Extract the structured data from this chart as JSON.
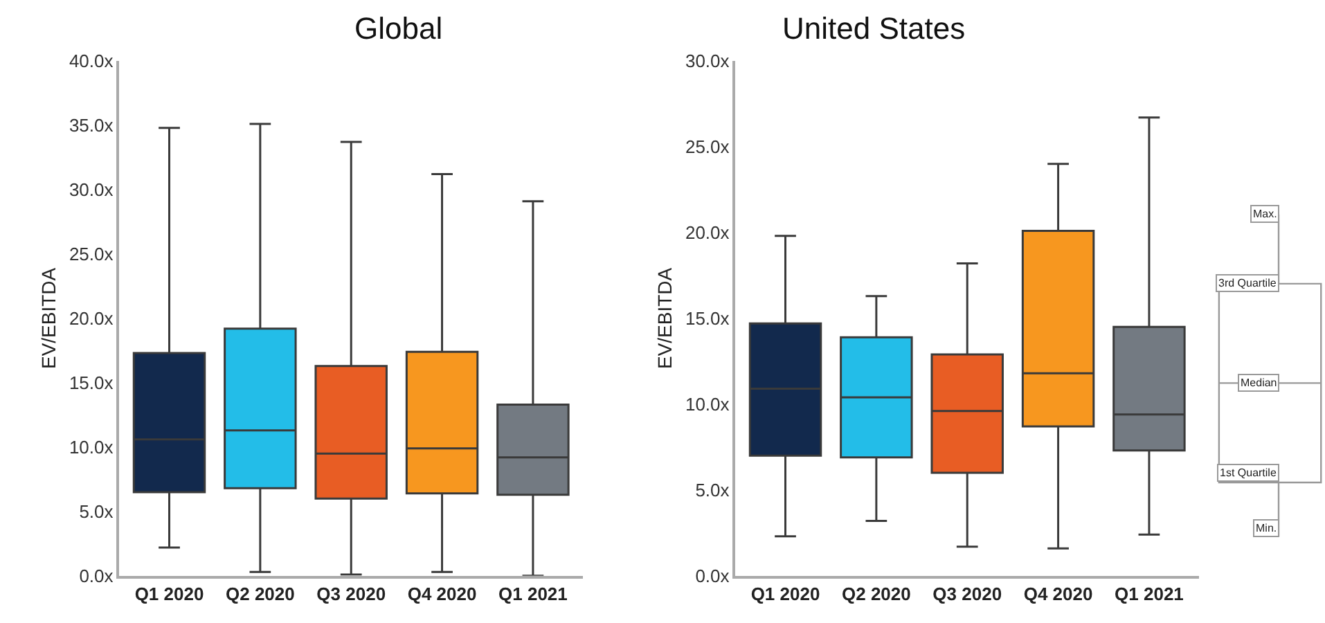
{
  "chart_data": [
    {
      "type": "box",
      "title": "Global",
      "ylabel": "EV/EBITDA",
      "categories": [
        "Q1 2020",
        "Q2 2020",
        "Q3 2020",
        "Q4 2020",
        "Q1 2021"
      ],
      "colors": [
        "#12294d",
        "#23bde8",
        "#e85d24",
        "#f7971f",
        "#737a82"
      ],
      "boxes": [
        {
          "low": 2.2,
          "q1": 6.5,
          "median": 10.6,
          "q3": 17.3,
          "high": 34.8
        },
        {
          "low": 0.3,
          "q1": 6.8,
          "median": 11.3,
          "q3": 19.2,
          "high": 35.1
        },
        {
          "low": 0.1,
          "q1": 6.0,
          "median": 9.5,
          "q3": 16.3,
          "high": 33.7
        },
        {
          "low": 0.3,
          "q1": 6.4,
          "median": 9.9,
          "q3": 17.4,
          "high": 31.2
        },
        {
          "low": 0,
          "q1": 6.3,
          "median": 9.2,
          "q3": 13.3,
          "high": 29.1
        }
      ],
      "ylim": [
        0,
        40
      ],
      "yticks": [
        {
          "value": 0,
          "label": "0.0x"
        },
        {
          "value": 5,
          "label": "5.0x"
        },
        {
          "value": 10,
          "label": "10.0x"
        },
        {
          "value": 15,
          "label": "15.0x"
        },
        {
          "value": 20,
          "label": "20.0x"
        },
        {
          "value": 25,
          "label": "25.0x"
        },
        {
          "value": 30,
          "label": "30.0x"
        },
        {
          "value": 35,
          "label": "35.0x"
        },
        {
          "value": 40,
          "label": "40.0x"
        }
      ]
    },
    {
      "type": "box",
      "title": "United States",
      "ylabel": "EV/EBITDA",
      "categories": [
        "Q1 2020",
        "Q2 2020",
        "Q3 2020",
        "Q4 2020",
        "Q1 2021"
      ],
      "colors": [
        "#12294d",
        "#23bde8",
        "#e85d24",
        "#f7971f",
        "#737a82"
      ],
      "boxes": [
        {
          "low": 2.3,
          "q1": 7.0,
          "median": 10.9,
          "q3": 14.7,
          "high": 19.8
        },
        {
          "low": 3.2,
          "q1": 6.9,
          "median": 10.4,
          "q3": 13.9,
          "high": 16.3
        },
        {
          "low": 1.7,
          "q1": 6.0,
          "median": 9.6,
          "q3": 12.9,
          "high": 18.2
        },
        {
          "low": 1.6,
          "q1": 8.7,
          "median": 11.8,
          "q3": 20.1,
          "high": 24.0
        },
        {
          "low": 2.4,
          "q1": 7.3,
          "median": 9.4,
          "q3": 14.5,
          "high": 26.7
        }
      ],
      "ylim": [
        0,
        30
      ],
      "yticks": [
        {
          "value": 0,
          "label": "0.0x"
        },
        {
          "value": 5,
          "label": "5.0x"
        },
        {
          "value": 10,
          "label": "10.0x"
        },
        {
          "value": 15,
          "label": "15.0x"
        },
        {
          "value": 20,
          "label": "20.0x"
        },
        {
          "value": 25,
          "label": "25.0x"
        },
        {
          "value": 30,
          "label": "30.0x"
        }
      ]
    },
    {
      "type": "other",
      "annotations": [
        "Max.",
        "3rd Quartile",
        "Median",
        "1st Quartile",
        "Min."
      ]
    }
  ]
}
